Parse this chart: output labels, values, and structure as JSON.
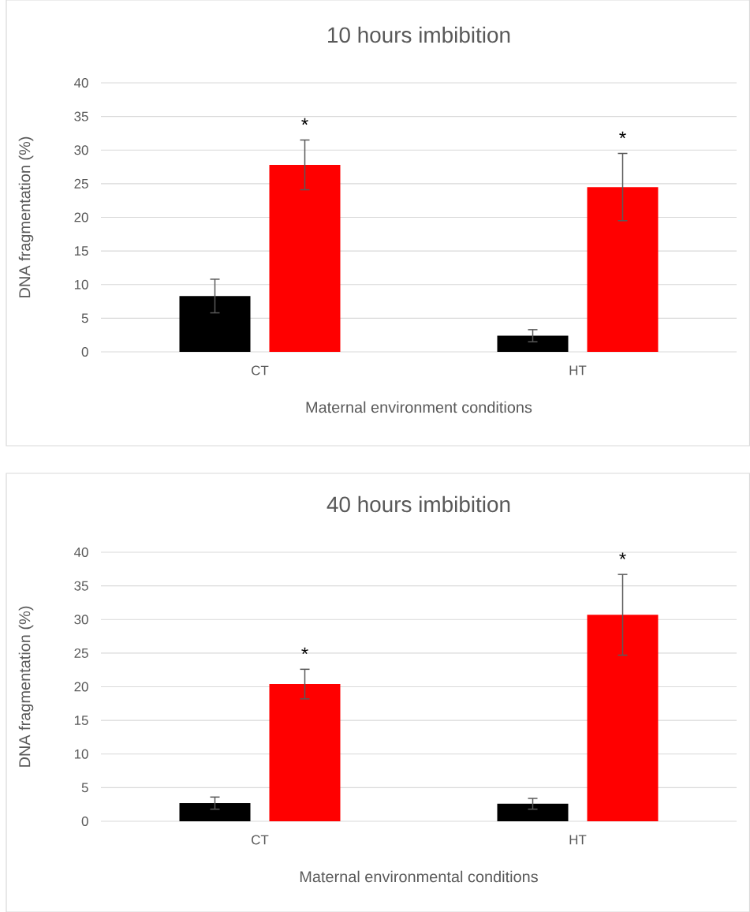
{
  "chart_data": [
    {
      "type": "bar",
      "title": "10 hours imbibition",
      "xlabel": "Maternal environment conditions",
      "ylabel": "DNA fragmentation (%)",
      "categories": [
        "CT",
        "HT"
      ],
      "series": [
        {
          "color": "#000000",
          "values": [
            8.3,
            2.4
          ],
          "errors": [
            2.5,
            0.9
          ]
        },
        {
          "color": "#ff0000",
          "values": [
            27.8,
            24.5
          ],
          "errors": [
            3.7,
            5.0
          ]
        }
      ],
      "ylim": [
        0,
        40
      ],
      "yticks": [
        0,
        5,
        10,
        15,
        20,
        25,
        30,
        35,
        40
      ],
      "grid": "y",
      "annotations": [
        "*",
        "*"
      ]
    },
    {
      "type": "bar",
      "title": "40 hours imbibition",
      "xlabel": "Maternal environmental conditions",
      "ylabel": "DNA fragmentation (%)",
      "categories": [
        "CT",
        "HT"
      ],
      "series": [
        {
          "color": "#000000",
          "values": [
            2.7,
            2.6
          ],
          "errors": [
            0.9,
            0.8
          ]
        },
        {
          "color": "#ff0000",
          "values": [
            20.4,
            30.7
          ],
          "errors": [
            2.2,
            6.0
          ]
        }
      ],
      "ylim": [
        0,
        40
      ],
      "yticks": [
        0,
        5,
        10,
        15,
        20,
        25,
        30,
        35,
        40
      ],
      "grid": "y",
      "annotations": [
        "*",
        "*"
      ]
    }
  ]
}
